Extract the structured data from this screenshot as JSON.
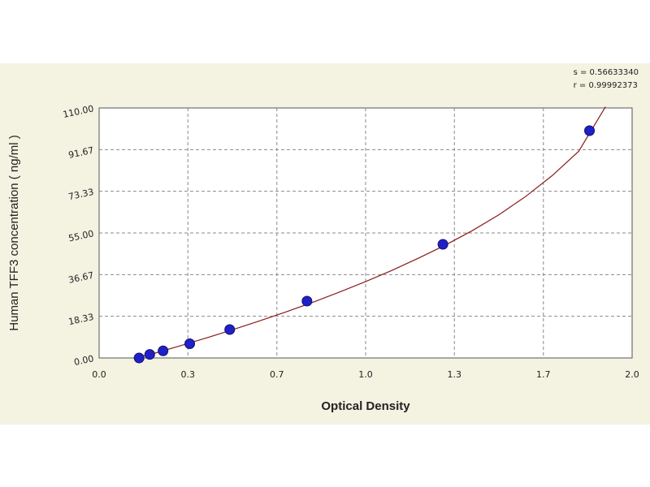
{
  "stats": {
    "s_line": "s = 0.56633340",
    "r_line": "r = 0.99992373"
  },
  "colors": {
    "background": "#f4f2e1",
    "plot_area": "#ffffff",
    "grid": "#8a8a8a",
    "curve": "#8b1a1a",
    "points": "#2020c8"
  },
  "chart_data": {
    "type": "scatter",
    "title": "",
    "xlabel": "Optical Density",
    "ylabel": "Human TFF3 concentration ( ng/ml )",
    "xlim": [
      0.0,
      2.0
    ],
    "ylim": [
      0.0,
      110.0
    ],
    "x_ticks": [
      "0.0",
      "0.3",
      "0.7",
      "1.0",
      "1.3",
      "1.7",
      "2.0"
    ],
    "x_tick_values": [
      0.0,
      0.333,
      0.667,
      1.0,
      1.333,
      1.667,
      2.0
    ],
    "y_ticks": [
      "0.00",
      "18.33",
      "36.67",
      "55.00",
      "73.33",
      "91.67",
      "110.00"
    ],
    "y_tick_values": [
      0.0,
      18.33,
      36.67,
      55.0,
      73.33,
      91.67,
      110.0
    ],
    "grid": true,
    "points": {
      "x": [
        0.15,
        0.19,
        0.24,
        0.34,
        0.49,
        0.78,
        1.29,
        1.84
      ],
      "y": [
        0.0,
        1.56,
        3.13,
        6.25,
        12.5,
        25.0,
        50.0,
        100.0
      ]
    },
    "fit_curve": {
      "x": [
        0.13,
        0.2,
        0.3,
        0.4,
        0.5,
        0.6,
        0.7,
        0.8,
        0.9,
        1.0,
        1.1,
        1.2,
        1.3,
        1.4,
        1.5,
        1.6,
        1.7,
        1.8,
        1.9
      ],
      "y": [
        -0.5,
        1.8,
        5.2,
        8.7,
        12.4,
        16.2,
        20.2,
        24.4,
        28.9,
        33.6,
        38.6,
        44.0,
        49.7,
        56.0,
        63.0,
        71.0,
        80.2,
        91.0,
        110.5
      ]
    }
  }
}
